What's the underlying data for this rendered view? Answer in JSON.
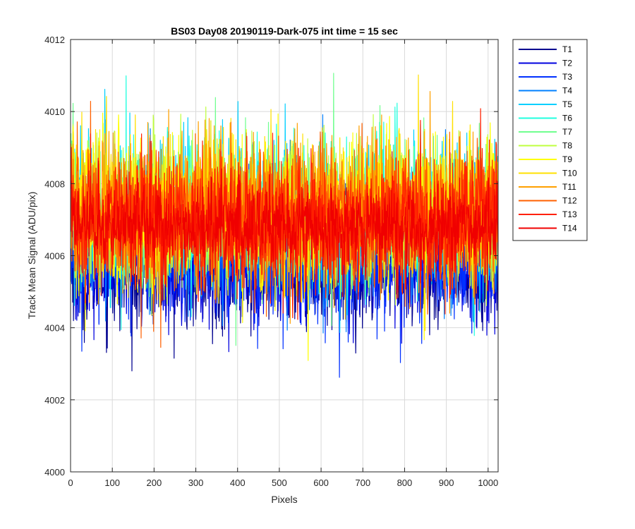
{
  "chart_data": {
    "type": "line",
    "title": "BS03 Day08 20190119-Dark-075 int time = 15 sec",
    "xlabel": "Pixels",
    "ylabel": "Track Mean Signal (ADU/pix)",
    "xlim": [
      0,
      1024
    ],
    "ylim": [
      4000,
      4012
    ],
    "xticks": [
      0,
      100,
      200,
      300,
      400,
      500,
      600,
      700,
      800,
      900,
      1000
    ],
    "yticks": [
      4000,
      4002,
      4004,
      4006,
      4008,
      4010,
      4012
    ],
    "grid": true,
    "legend_position": "outside-right",
    "x_start": 1,
    "x_count": 1024,
    "series": [
      {
        "name": "T1",
        "color": "#00008f",
        "mean": 4005.6,
        "spread": 0.8
      },
      {
        "name": "T2",
        "color": "#0000df",
        "mean": 4005.8,
        "spread": 0.8
      },
      {
        "name": "T3",
        "color": "#0030ff",
        "mean": 4006.0,
        "spread": 0.85
      },
      {
        "name": "T4",
        "color": "#0080ff",
        "mean": 4006.5,
        "spread": 0.9
      },
      {
        "name": "T5",
        "color": "#00cfff",
        "mean": 4007.2,
        "spread": 1.0
      },
      {
        "name": "T6",
        "color": "#20ffdf",
        "mean": 4007.3,
        "spread": 0.95
      },
      {
        "name": "T7",
        "color": "#70ff8f",
        "mean": 4007.2,
        "spread": 0.95
      },
      {
        "name": "T8",
        "color": "#bfff40",
        "mean": 4007.1,
        "spread": 0.95
      },
      {
        "name": "T9",
        "color": "#ffff00",
        "mean": 4007.2,
        "spread": 1.0
      },
      {
        "name": "T10",
        "color": "#ffe000",
        "mean": 4007.3,
        "spread": 1.0
      },
      {
        "name": "T11",
        "color": "#ffa000",
        "mean": 4007.2,
        "spread": 1.0
      },
      {
        "name": "T12",
        "color": "#ff6000",
        "mean": 4007.1,
        "spread": 0.95
      },
      {
        "name": "T13",
        "color": "#ff2000",
        "mean": 4006.9,
        "spread": 0.95
      },
      {
        "name": "T14",
        "color": "#f00000",
        "mean": 4006.8,
        "spread": 0.6
      }
    ]
  }
}
